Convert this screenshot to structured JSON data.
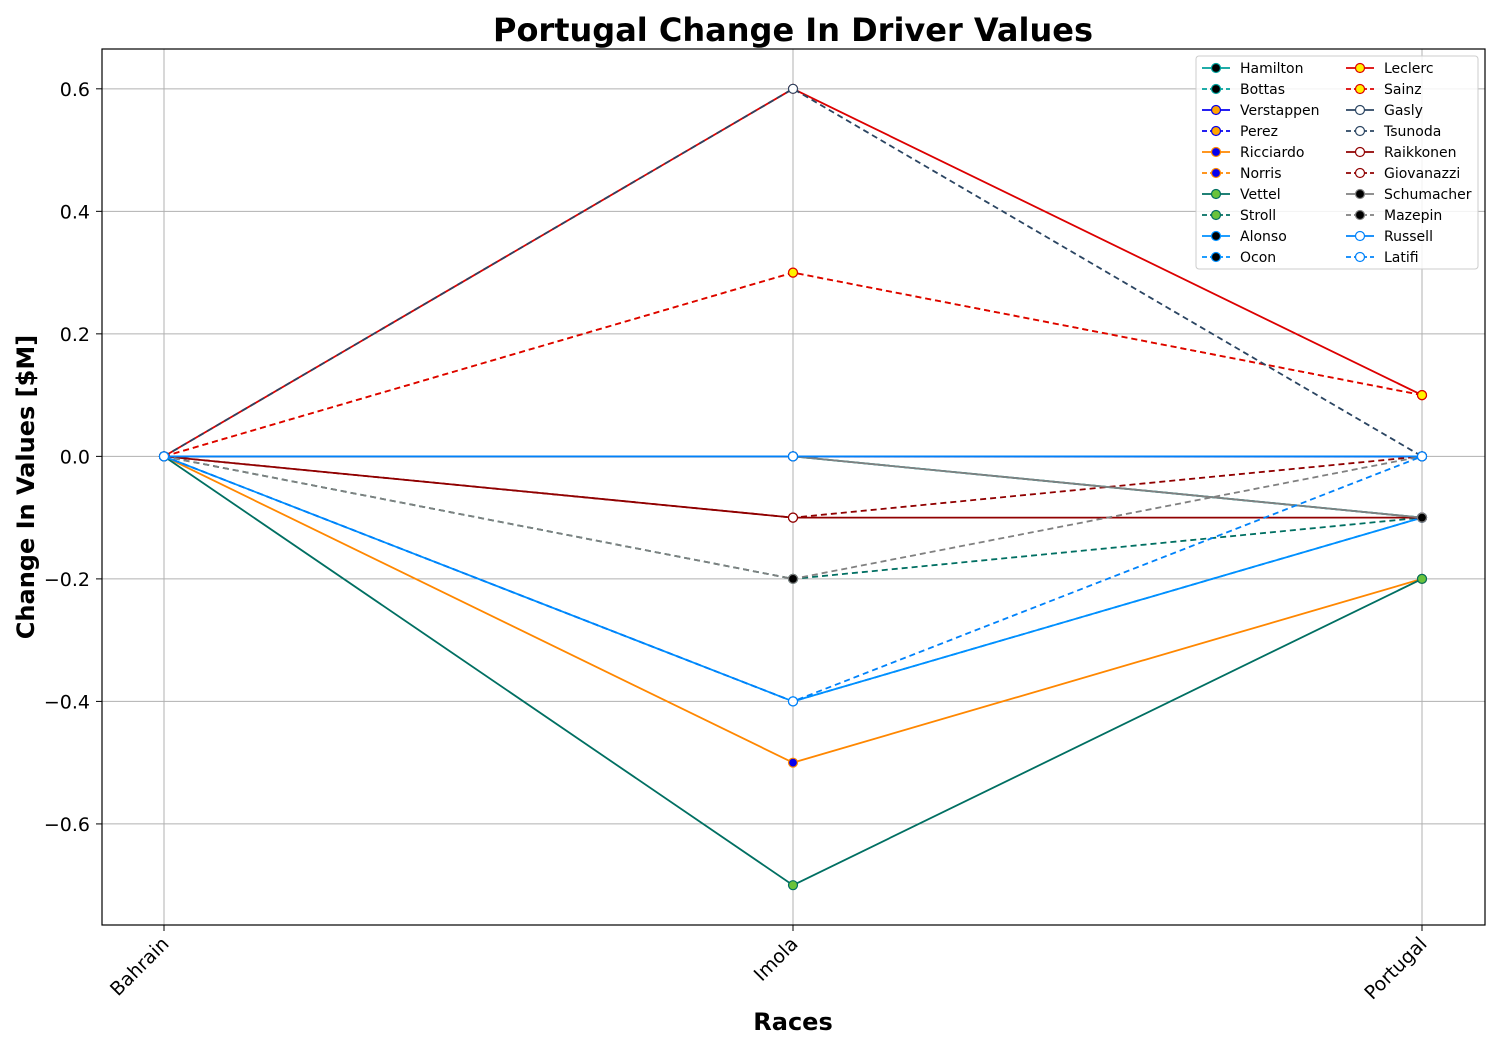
{
  "chart_data": {
    "type": "line",
    "title": "Portugal Change In Driver Values",
    "xlabel": "Races",
    "ylabel": "Change In Values [$M]",
    "categories": [
      "Bahrain",
      "Imola",
      "Portugal"
    ],
    "ylim": [
      -0.765,
      0.665
    ],
    "yticks": [
      -0.6,
      -0.4,
      -0.2,
      0.0,
      0.2,
      0.4,
      0.6
    ],
    "ytick_labels": [
      "−0.6",
      "−0.4",
      "−0.2",
      "0.0",
      "0.2",
      "0.4",
      "0.6"
    ],
    "grid": true,
    "legend": {
      "placement": "top-right",
      "columns": 2
    },
    "series": [
      {
        "name": "Hamilton",
        "values": [
          0,
          0,
          -0.1
        ],
        "color": "#00a19c",
        "marker_fill": "#000000",
        "dashed": false
      },
      {
        "name": "Bottas",
        "values": [
          0,
          0,
          -0.1
        ],
        "color": "#00a19c",
        "marker_fill": "#000000",
        "dashed": true
      },
      {
        "name": "Verstappen",
        "values": [
          0,
          0,
          0
        ],
        "color": "#0600ef",
        "marker_fill": "#ffa500",
        "dashed": false
      },
      {
        "name": "Perez",
        "values": [
          0,
          0,
          0
        ],
        "color": "#0600ef",
        "marker_fill": "#ffa500",
        "dashed": true
      },
      {
        "name": "Ricciardo",
        "values": [
          0,
          -0.5,
          -0.2
        ],
        "color": "#ff8700",
        "marker_fill": "#0600ef",
        "dashed": false
      },
      {
        "name": "Norris",
        "values": [
          0,
          0.3,
          0.1
        ],
        "color": "#ff8700",
        "marker_fill": "#0600ef",
        "dashed": true
      },
      {
        "name": "Vettel",
        "values": [
          0,
          -0.7,
          -0.2
        ],
        "color": "#006f62",
        "marker_fill": "#6ac33c",
        "dashed": false
      },
      {
        "name": "Stroll",
        "values": [
          0,
          -0.2,
          -0.1
        ],
        "color": "#006f62",
        "marker_fill": "#6ac33c",
        "dashed": true
      },
      {
        "name": "Alonso",
        "values": [
          0,
          -0.4,
          -0.1
        ],
        "color": "#0090ff",
        "marker_fill": "#000000",
        "dashed": false
      },
      {
        "name": "Ocon",
        "values": [
          0,
          -0.4,
          -0.1
        ],
        "color": "#0090ff",
        "marker_fill": "#000000",
        "dashed": true
      },
      {
        "name": "Leclerc",
        "values": [
          0,
          0.6,
          0.1
        ],
        "color": "#dc0000",
        "marker_fill": "#fff200",
        "dashed": false
      },
      {
        "name": "Sainz",
        "values": [
          0,
          0.3,
          0.1
        ],
        "color": "#dc0000",
        "marker_fill": "#fff200",
        "dashed": true
      },
      {
        "name": "Gasly",
        "values": [
          0,
          0,
          0
        ],
        "color": "#2b4562",
        "marker_fill": "#ffffff",
        "dashed": false
      },
      {
        "name": "Tsunoda",
        "values": [
          0,
          0.6,
          0
        ],
        "color": "#2b4562",
        "marker_fill": "#ffffff",
        "dashed": true
      },
      {
        "name": "Raikkonen",
        "values": [
          0,
          -0.1,
          -0.1
        ],
        "color": "#900000",
        "marker_fill": "#ffffff",
        "dashed": false
      },
      {
        "name": "Giovanazzi",
        "values": [
          0,
          -0.1,
          0
        ],
        "color": "#900000",
        "marker_fill": "#ffffff",
        "dashed": true
      },
      {
        "name": "Schumacher",
        "values": [
          0,
          0,
          -0.1
        ],
        "color": "#808080",
        "marker_fill": "#000000",
        "dashed": false
      },
      {
        "name": "Mazepin",
        "values": [
          0,
          -0.2,
          0
        ],
        "color": "#808080",
        "marker_fill": "#000000",
        "dashed": true
      },
      {
        "name": "Russell",
        "values": [
          0,
          0,
          0
        ],
        "color": "#0082fa",
        "marker_fill": "#ffffff",
        "dashed": false
      },
      {
        "name": "Latifi",
        "values": [
          0,
          -0.4,
          0
        ],
        "color": "#0082fa",
        "marker_fill": "#ffffff",
        "dashed": true
      }
    ]
  }
}
